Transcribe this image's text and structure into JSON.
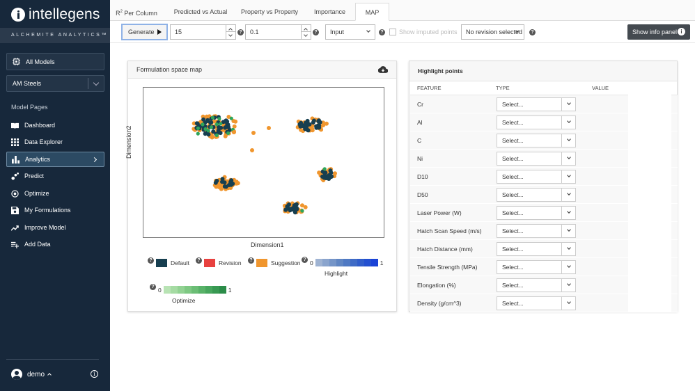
{
  "brand": {
    "name": "intellegens",
    "tagline": "ALCHEMITE ANALYTICS™"
  },
  "sidebar": {
    "all_models": "All Models",
    "model_select": "AM Steels",
    "section_label": "Model Pages",
    "items": [
      {
        "label": "Dashboard",
        "icon": "book-icon"
      },
      {
        "label": "Data Explorer",
        "icon": "grid-icon"
      },
      {
        "label": "Analytics",
        "icon": "bar-chart-icon"
      },
      {
        "label": "Predict",
        "icon": "scatter-icon"
      },
      {
        "label": "Optimize",
        "icon": "target-icon"
      },
      {
        "label": "My Formulations",
        "icon": "save-icon"
      },
      {
        "label": "Improve Model",
        "icon": "trend-up-icon"
      },
      {
        "label": "Add Data",
        "icon": "playlist-add-icon"
      }
    ],
    "active_item": "Analytics",
    "user": "demo"
  },
  "tabs": {
    "r2_main": "R",
    "r2_sup": "2",
    "r2_rest": " Per Column",
    "pred": "Predicted vs Actual",
    "prop": "Property vs Property",
    "importance": "Importance",
    "map": "MAP",
    "active": "MAP"
  },
  "toolbar": {
    "generate_label": "Generate",
    "value1": "15",
    "value2": "0.1",
    "mode_select": "Input",
    "imputed_label": "Show imputed points",
    "revision_select": "No revision selected",
    "info_button": "Show info panel"
  },
  "map_panel": {
    "title": "Formulation space map",
    "xlabel": "Dimension1",
    "ylabel": "Dimension2",
    "legend": {
      "default": "Default",
      "revision": "Revision",
      "suggestion": "Suggestion",
      "highlight": "Highlight",
      "optimize": "Optimize",
      "scale_min": "0",
      "scale_max": "1"
    },
    "colors": {
      "default": "#173f50",
      "revision": "#e8413f",
      "suggestion": "#f0962e",
      "optimize": "#2fa55a"
    }
  },
  "highlight_panel": {
    "title": "Highlight points",
    "columns": [
      "FEATURE",
      "TYPE",
      "VALUE"
    ],
    "placeholder": "Select...",
    "rows": [
      "Cr",
      "Al",
      "C",
      "Ni",
      "D10",
      "D50",
      "Laser Power (W)",
      "Hatch Scan Speed (m/s)",
      "Hatch Distance (mm)",
      "Tensile Strength (MPa)",
      "Elongation (%)",
      "Density (g/cm^3)"
    ]
  }
}
